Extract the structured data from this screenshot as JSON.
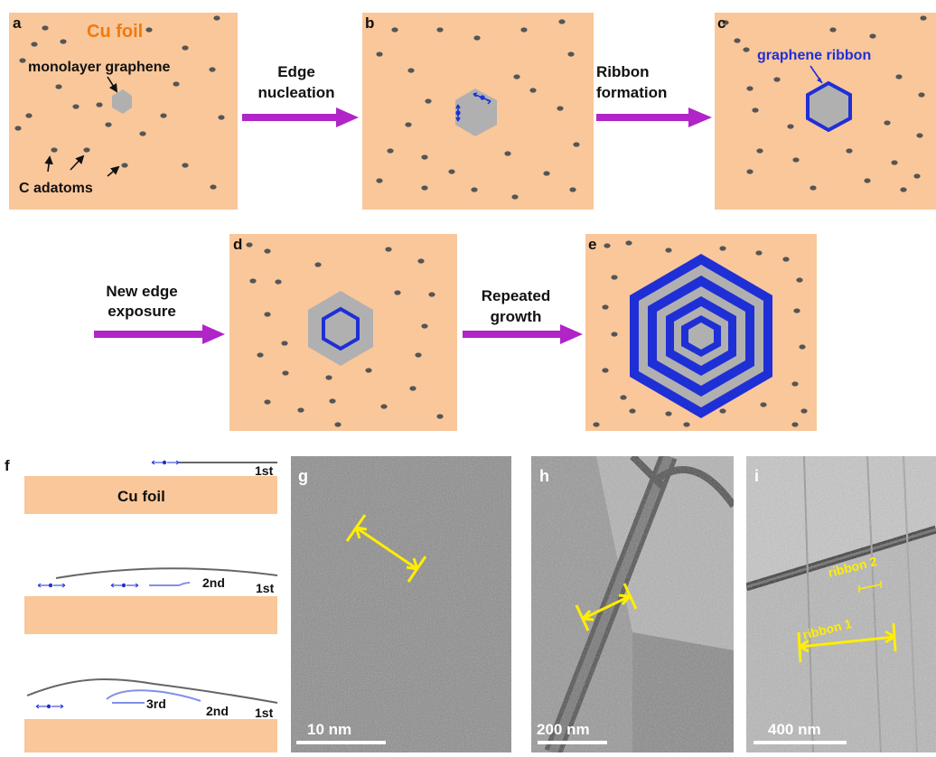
{
  "colors": {
    "cu": "#f9c79a",
    "graphene": "#b0b0b0",
    "ribbon": "#1f2fd6",
    "arrow": "#b024c8",
    "adatom": "#555555",
    "orange_text": "#f07a10",
    "scale_text": "#ffffff",
    "annot_yellow": "#ffee00"
  },
  "panels": {
    "a": {
      "letter": "a",
      "title": "Cu foil",
      "graphene_label": "monolayer graphene",
      "adatom_label": "C adatoms"
    },
    "b": {
      "letter": "b"
    },
    "c": {
      "letter": "c",
      "ribbon_label": "graphene ribbon"
    },
    "d": {
      "letter": "d"
    },
    "e": {
      "letter": "e"
    },
    "f": {
      "letter": "f",
      "foil_label": "Cu foil",
      "stage1_labels": [
        "1st"
      ],
      "stage2_labels": [
        "2nd",
        "1st"
      ],
      "stage3_labels": [
        "3rd",
        "2nd",
        "1st"
      ]
    },
    "g": {
      "letter": "g",
      "scale": "10 nm"
    },
    "h": {
      "letter": "h",
      "scale": "200 nm"
    },
    "i": {
      "letter": "i",
      "scale": "400 nm",
      "ribbon1": "ribbon 1",
      "ribbon2": "ribbon 2"
    }
  },
  "steps": {
    "edge_nucleation": [
      "Edge",
      "nucleation"
    ],
    "ribbon_formation": [
      "Ribbon",
      "formation"
    ],
    "new_edge_exposure": [
      "New edge",
      "exposure"
    ],
    "repeated_growth": [
      "Repeated",
      "growth"
    ]
  }
}
